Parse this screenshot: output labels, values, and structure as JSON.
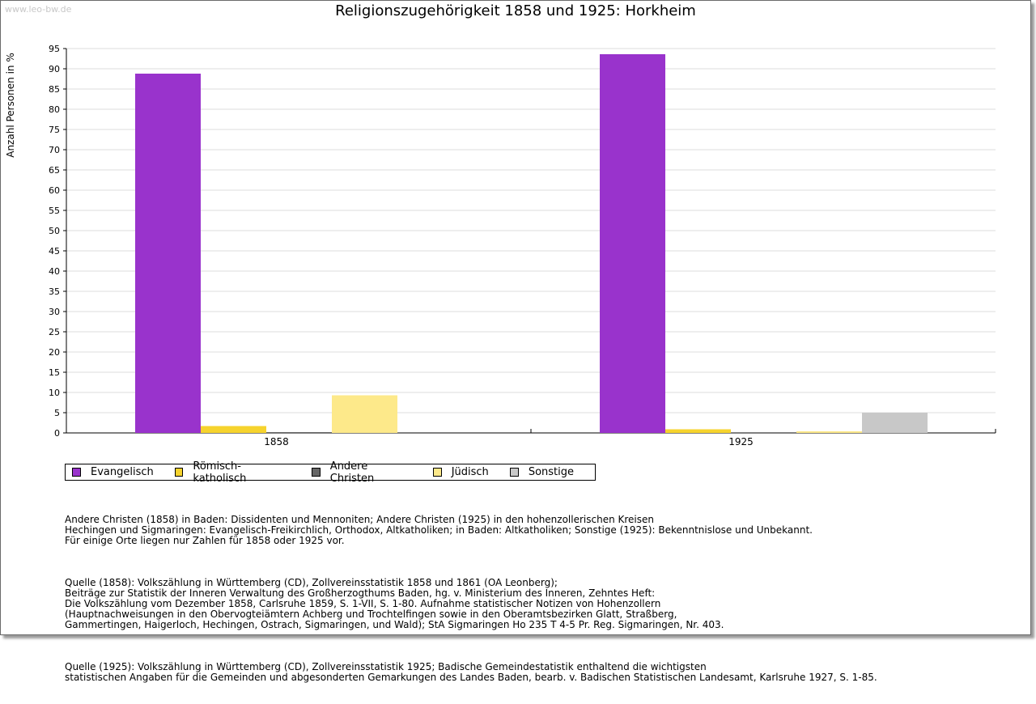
{
  "watermark": "www.leo-bw.de",
  "chart_data": {
    "type": "bar",
    "title": "Religionszugehörigkeit 1858 und 1925: Horkheim",
    "ylabel": "Anzahl Personen in %",
    "xlabel": "",
    "ylim": [
      0,
      95
    ],
    "yticks": [
      0,
      5,
      10,
      15,
      20,
      25,
      30,
      35,
      40,
      45,
      50,
      55,
      60,
      65,
      70,
      75,
      80,
      85,
      90,
      95
    ],
    "grid": true,
    "legend_position": "bottom",
    "categories": [
      "1858",
      "1925"
    ],
    "series": [
      {
        "name": "Evangelisch",
        "color": "#9933cc",
        "values": [
          88.8,
          93.6
        ]
      },
      {
        "name": "Römisch-katholisch",
        "color": "#f6d32d",
        "values": [
          1.7,
          0.9
        ]
      },
      {
        "name": "Andere Christen",
        "color": "#666666",
        "values": [
          0.2,
          0
        ]
      },
      {
        "name": "Jüdisch",
        "color": "#fde98a",
        "values": [
          9.3,
          0.4
        ]
      },
      {
        "name": "Sonstige",
        "color": "#c8c8c8",
        "values": [
          0,
          5.0
        ]
      }
    ]
  },
  "notes": {
    "p1": "Andere Christen (1858) in Baden: Dissidenten und Mennoniten; Andere Christen (1925) in den hohenzollerischen Kreisen\nHechingen und Sigmaringen: Evangelisch-Freikirchlich, Orthodox, Altkatholiken; in Baden: Altkatholiken; Sonstige (1925): Bekenntnislose und Unbekannt.\nFür einige Orte liegen nur Zahlen für 1858 oder 1925 vor.",
    "p2": "Quelle (1858): Volkszählung in Württemberg (CD), Zollvereinsstatistik 1858 und 1861 (OA Leonberg);\nBeiträge zur Statistik der Inneren Verwaltung des Großherzogthums Baden, hg. v. Ministerium des Inneren, Zehntes Heft:\nDie Volkszählung vom Dezember 1858, Carlsruhe 1859, S. 1-VII, S. 1-80. Aufnahme statistischer Notizen von Hohenzollern\n(Hauptnachweisungen in den Obervogteiämtern Achberg und Trochtelfingen sowie in den Oberamtsbezirken Glatt, Straßberg,\nGammertingen, Haigerloch, Hechingen, Ostrach, Sigmaringen, und Wald); StA Sigmaringen Ho 235 T 4-5 Pr. Reg. Sigmaringen, Nr. 403.",
    "p3": "Quelle (1925): Volkszählung in Württemberg (CD), Zollvereinsstatistik 1925; Badische Gemeindestatistik enthaltend die wichtigsten\nstatistischen Angaben für die Gemeinden und abgesonderten Gemarkungen des Landes Baden, bearb. v. Badischen Statistischen Landesamt, Karlsruhe 1927, S. 1-85."
  }
}
